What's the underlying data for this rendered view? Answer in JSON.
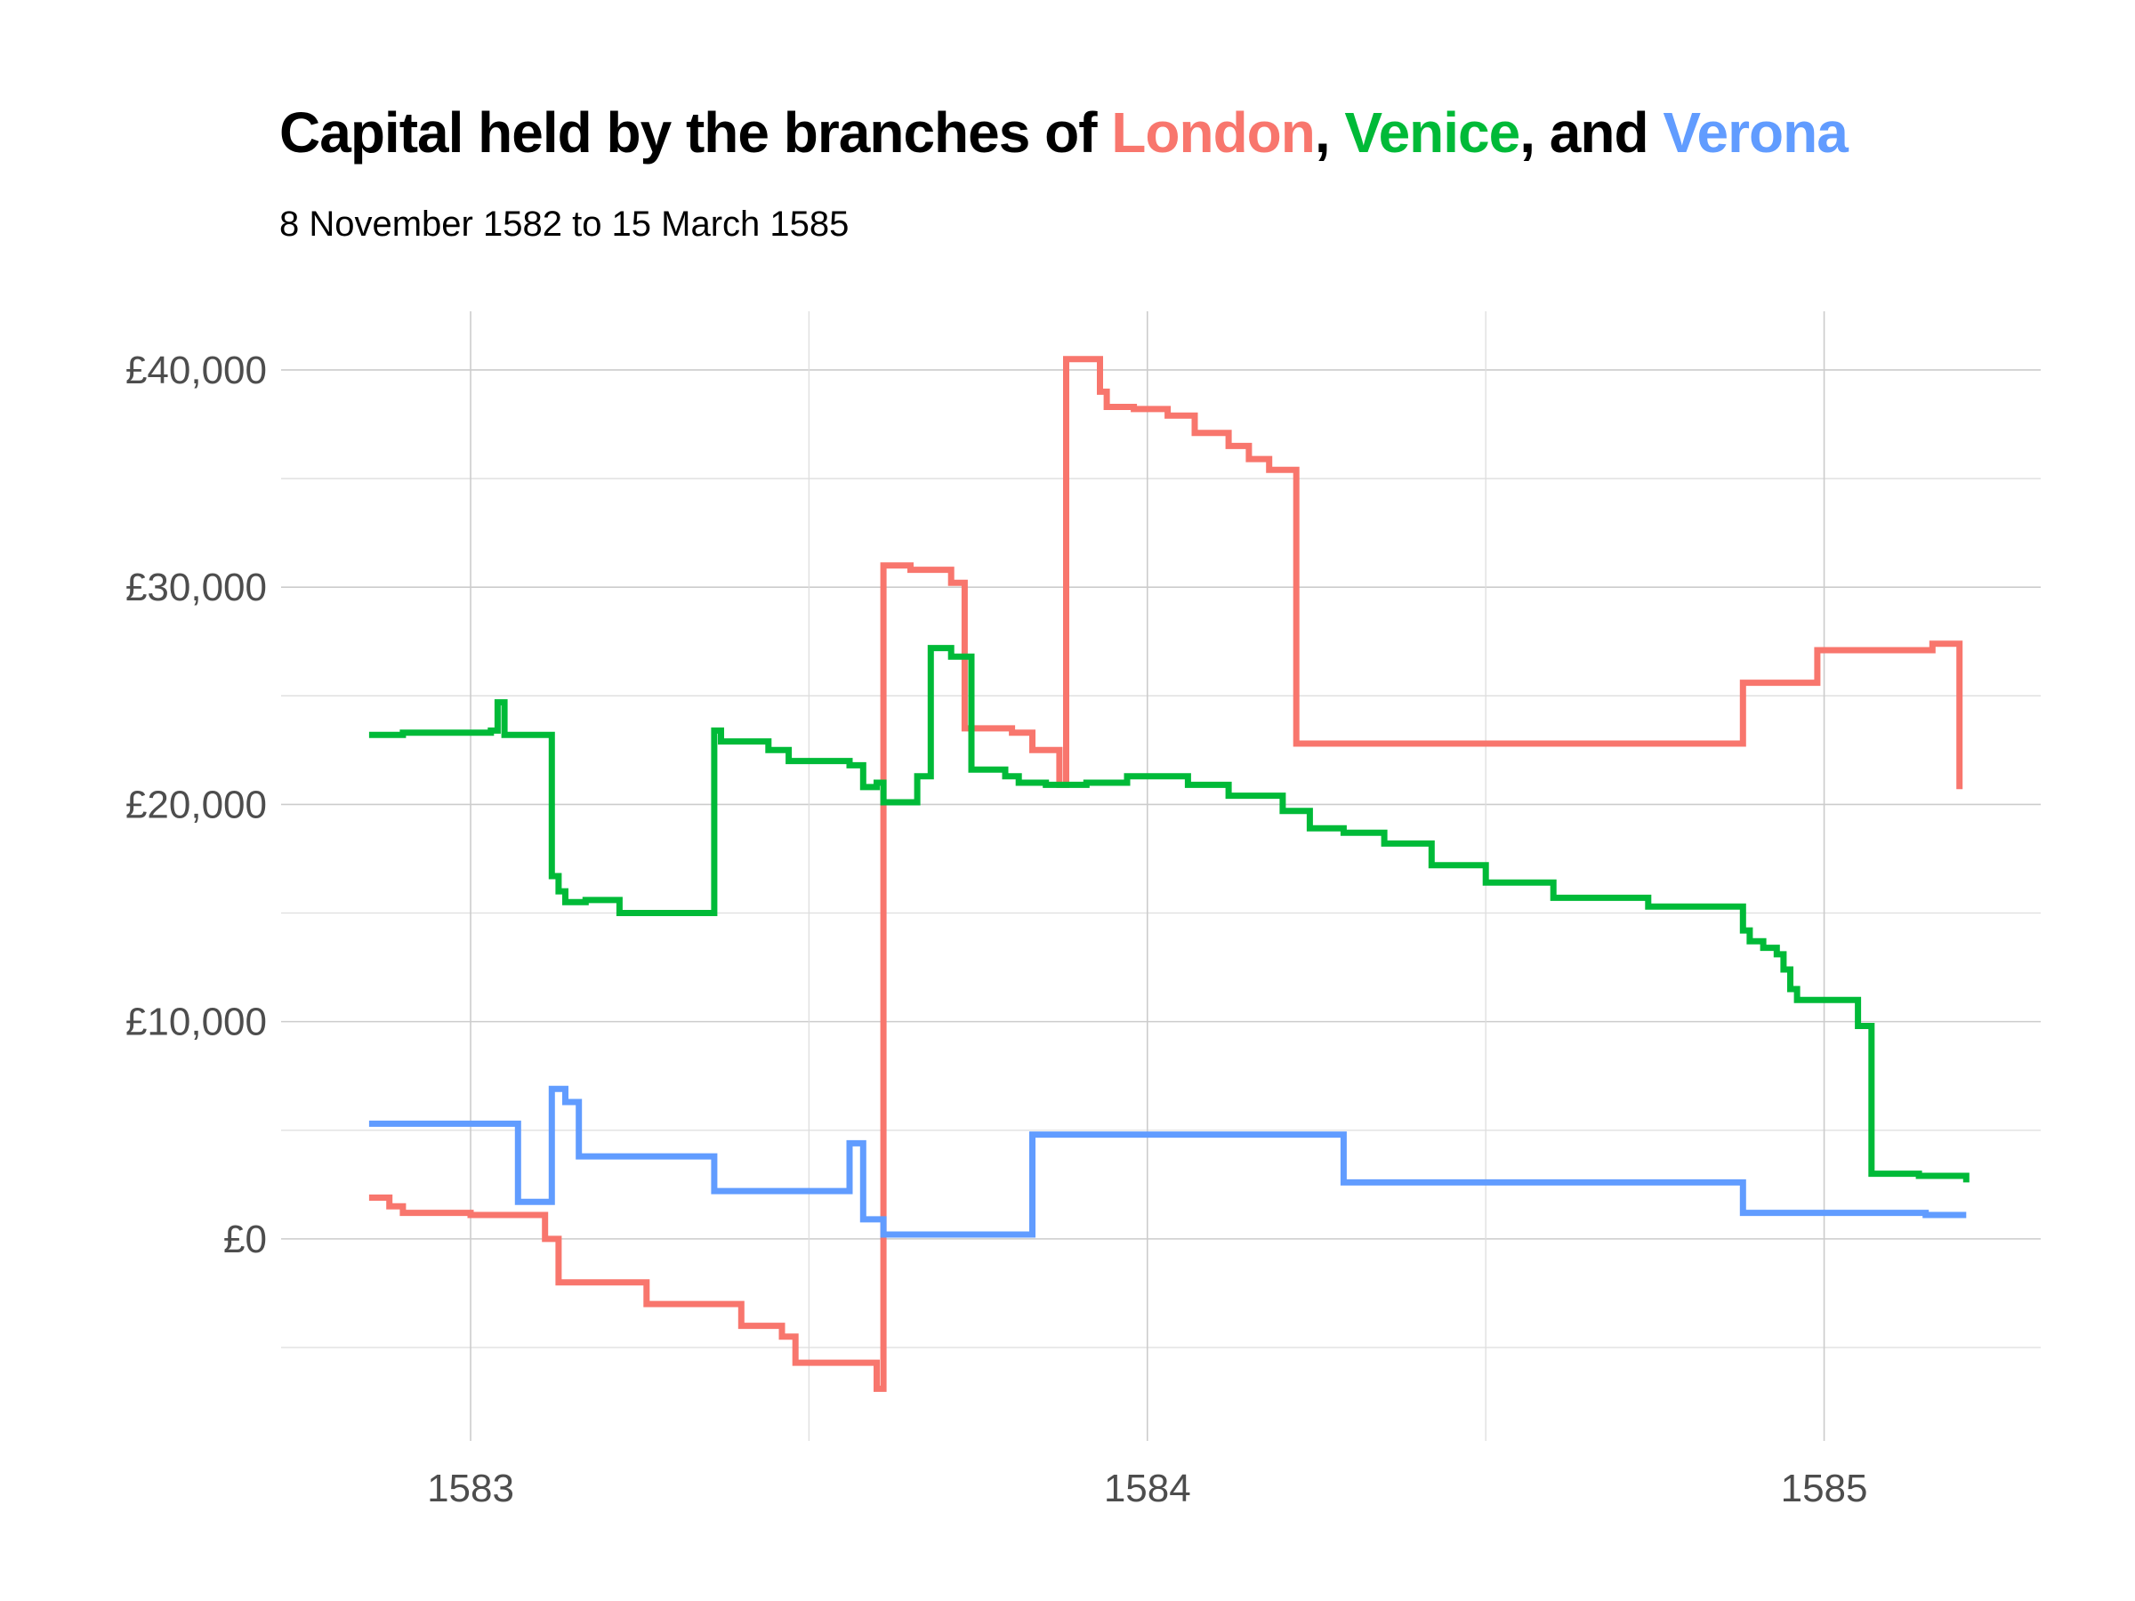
{
  "chart_data": {
    "type": "line",
    "title": {
      "prefix": "Capital held by the branches of ",
      "sep1": ", ",
      "sep2": ", and ",
      "london": "London",
      "venice": "Venice",
      "verona": "Verona"
    },
    "subtitle": "8 November 1582 to 15 March 1585",
    "xlabel": "",
    "ylabel": "",
    "x_ticks": [
      "1583",
      "1584",
      "1585"
    ],
    "y_ticks": [
      "£0",
      "£10,000",
      "£20,000",
      "£30,000",
      "£40,000"
    ],
    "xlim": [
      1582.72,
      1585.32
    ],
    "ylim": [
      -9300,
      42700
    ],
    "grid": true,
    "legend": "none (series named in title)",
    "colors": {
      "london": "#F8766D",
      "venice": "#00BA38",
      "verona": "#619CFF"
    },
    "series": [
      {
        "name": "London",
        "color": "#F8766D",
        "step": true,
        "x": [
          1582.85,
          1582.88,
          1582.9,
          1583.0,
          1583.11,
          1583.13,
          1583.26,
          1583.32,
          1583.4,
          1583.46,
          1583.48,
          1583.6,
          1583.61,
          1583.65,
          1583.71,
          1583.73,
          1583.8,
          1583.83,
          1583.87,
          1583.88,
          1583.93,
          1583.94,
          1583.98,
          1584.03,
          1584.07,
          1584.12,
          1584.15,
          1584.18,
          1584.22,
          1584.84,
          1584.88,
          1584.95,
          1584.99,
          1585.16,
          1585.2
        ],
        "y": [
          1900,
          1500,
          1200,
          1100,
          0,
          -2000,
          -3000,
          -3000,
          -4000,
          -4500,
          -5700,
          -6900,
          31000,
          30800,
          30200,
          23500,
          23300,
          22500,
          20900,
          40500,
          39000,
          38300,
          38200,
          37900,
          37100,
          36500,
          35900,
          35400,
          22800,
          22800,
          25600,
          25600,
          27100,
          27400,
          20700
        ]
      },
      {
        "name": "Venice",
        "color": "#00BA38",
        "step": true,
        "x": [
          1582.85,
          1582.9,
          1583.03,
          1583.04,
          1583.05,
          1583.12,
          1583.13,
          1583.14,
          1583.15,
          1583.17,
          1583.22,
          1583.36,
          1583.37,
          1583.44,
          1583.47,
          1583.56,
          1583.58,
          1583.6,
          1583.61,
          1583.66,
          1583.68,
          1583.71,
          1583.74,
          1583.79,
          1583.81,
          1583.85,
          1583.91,
          1583.97,
          1584.0,
          1584.06,
          1584.12,
          1584.2,
          1584.24,
          1584.29,
          1584.35,
          1584.42,
          1584.5,
          1584.6,
          1584.74,
          1584.88,
          1584.89,
          1584.91,
          1584.93,
          1584.94,
          1584.95,
          1584.96,
          1585.05,
          1585.07,
          1585.14,
          1585.21
        ],
        "y": [
          23200,
          23300,
          23400,
          24700,
          23200,
          16700,
          16000,
          15500,
          15500,
          15600,
          15000,
          23400,
          22900,
          22500,
          22000,
          21800,
          20800,
          21000,
          20100,
          21300,
          27200,
          26800,
          21600,
          21300,
          21000,
          20900,
          21000,
          21300,
          21300,
          20900,
          20400,
          19700,
          18900,
          18700,
          18200,
          17200,
          16400,
          15700,
          15300,
          14200,
          13700,
          13400,
          13100,
          12400,
          11500,
          11000,
          9800,
          3000,
          2900,
          2600
        ]
      },
      {
        "name": "Verona",
        "color": "#619CFF",
        "step": true,
        "x": [
          1582.85,
          1583.03,
          1583.07,
          1583.12,
          1583.14,
          1583.16,
          1583.36,
          1583.51,
          1583.56,
          1583.58,
          1583.61,
          1583.83,
          1584.29,
          1584.88,
          1585.1,
          1585.15,
          1585.21
        ],
        "y": [
          5300,
          5300,
          1700,
          6900,
          6300,
          3800,
          2200,
          2200,
          4400,
          900,
          200,
          4800,
          2600,
          1200,
          1200,
          1100,
          1100
        ]
      }
    ]
  }
}
